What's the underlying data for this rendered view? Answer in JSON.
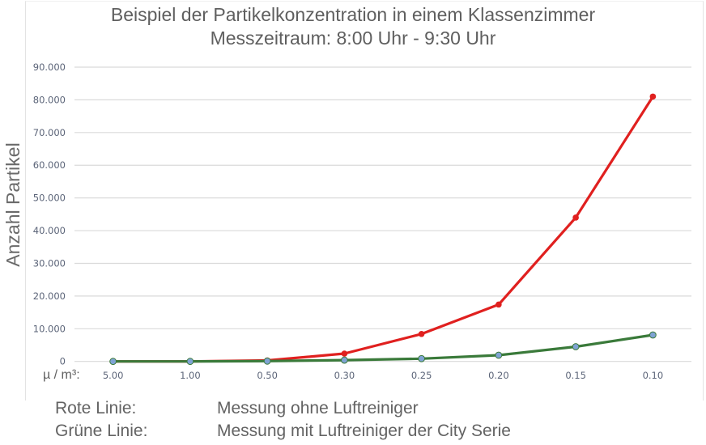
{
  "chart_data": {
    "type": "line",
    "title": "Beispiel der Partikelkonzentration in einem Klassenzimmer",
    "subtitle": "Messzeitraum: 8:00 Uhr - 9:30 Uhr",
    "xlabel": "µ / m³:",
    "ylabel": "Anzahl Partikel",
    "categories": [
      "5.00",
      "1.00",
      "0.50",
      "0.30",
      "0.25",
      "0.20",
      "0.15",
      "0.10"
    ],
    "y_ticks": [
      "0",
      "10.000",
      "20.000",
      "30.000",
      "40.000",
      "50.000",
      "60.000",
      "70.000",
      "80.000",
      "90.000"
    ],
    "ylim": [
      0,
      90000
    ],
    "grid": true,
    "series": [
      {
        "name": "Messung ohne Luftreiniger",
        "color": "#e0201f",
        "marker_color": "#e0201f",
        "values": [
          0,
          0,
          300,
          2400,
          8400,
          17400,
          44000,
          81000
        ]
      },
      {
        "name": "Messung mit Luftreiniger der City Serie",
        "color": "#3a7a3a",
        "marker_color": "#7fa3d4",
        "values": [
          0,
          0,
          100,
          400,
          850,
          1900,
          4500,
          8100
        ]
      }
    ]
  },
  "header": {
    "title_line1": "Beispiel der Partikelkonzentration in einem Klassenzimmer",
    "title_line2": "Messzeitraum: 8:00 Uhr - 9:30 Uhr"
  },
  "axes": {
    "y_label": "Anzahl Partikel",
    "x_unit": "µ / m³:"
  },
  "legend": {
    "red_key": "Rote Linie:",
    "red_text": "Messung ohne Luftreiniger",
    "green_key": "Grüne Linie:",
    "green_text": "Messung mit Luftreiniger der City Serie"
  }
}
